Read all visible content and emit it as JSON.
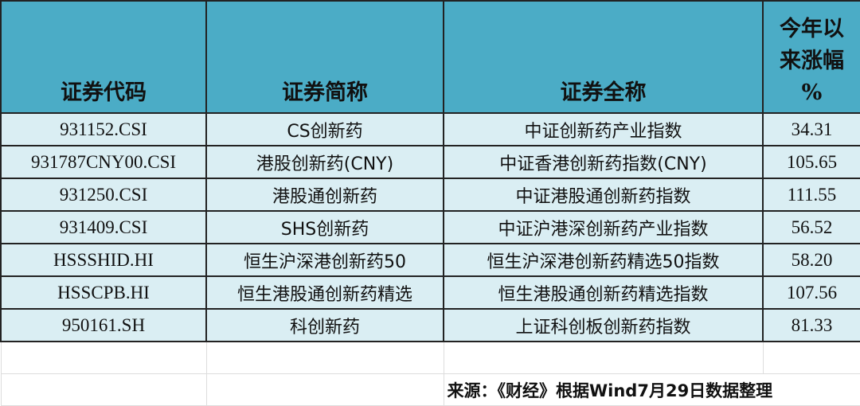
{
  "table": {
    "headers": [
      "证券代码",
      "证券简称",
      "证券全称",
      "今年以来涨幅%"
    ],
    "header_lines_col4": [
      "今年以",
      "来涨幅",
      "%"
    ],
    "rows": [
      [
        "931152.CSI",
        "CS创新药",
        "中证创新药产业指数",
        "34.31"
      ],
      [
        "931787CNY00.CSI",
        "港股创新药(CNY)",
        "中证香港创新药指数(CNY)",
        "105.65"
      ],
      [
        "931250.CSI",
        "港股通创新药",
        "中证港股通创新药指数",
        "111.55"
      ],
      [
        "931409.CSI",
        "SHS创新药",
        "中证沪港深创新药产业指数",
        "56.52"
      ],
      [
        "HSSSHID.HI",
        "恒生沪深港创新药50",
        "恒生沪深港创新药精选50指数",
        "58.20"
      ],
      [
        "HSSCPB.HI",
        "恒生港股通创新药精选",
        "恒生港股通创新药精选指数",
        "107.56"
      ],
      [
        "950161.SH",
        "科创新药",
        "上证科创板创新药指数",
        "81.33"
      ]
    ]
  },
  "source": "来源：《财经》根据Wind7月29日数据整理",
  "colors": {
    "header_bg": "#4bacc6",
    "row_bg": "#daeef3"
  }
}
